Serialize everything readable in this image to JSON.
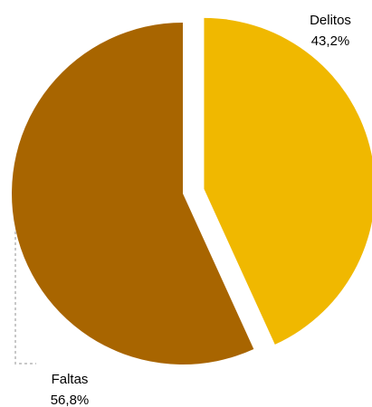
{
  "chart_data": {
    "type": "pie",
    "title": "",
    "slices": [
      {
        "name": "Delitos",
        "value": 43.2,
        "label": "43,2%",
        "color": "#F0B800",
        "exploded": true
      },
      {
        "name": "Faltas",
        "value": 56.8,
        "label": "56,8%",
        "color": "#A86500",
        "exploded": false
      }
    ],
    "start_angle": "top",
    "direction": "clockwise",
    "legend": "none",
    "leader_line_color": "#C8C8C8"
  }
}
